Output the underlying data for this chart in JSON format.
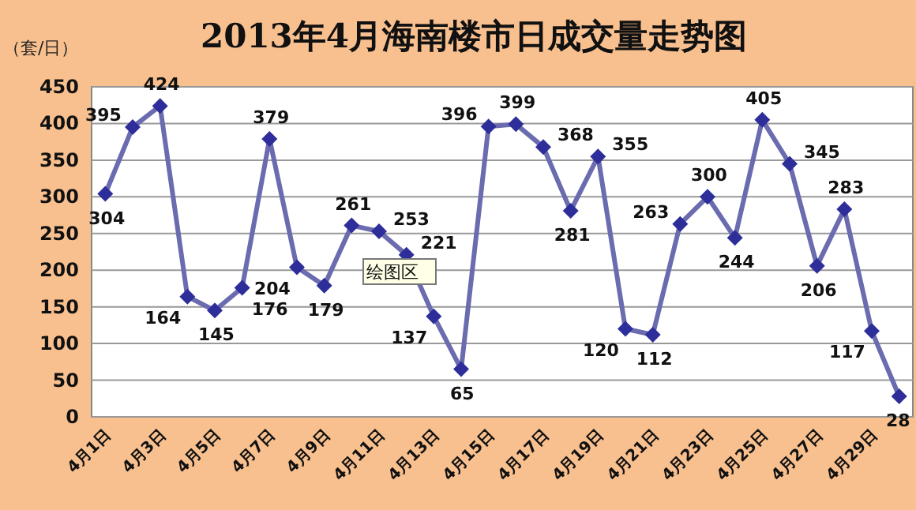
{
  "chart_data": {
    "type": "line",
    "title": "2013年4月海南楼市日成交量走势图",
    "ylabel": "（套/日）",
    "categories": [
      "4月1日",
      null,
      "4月3日",
      null,
      "4月5日",
      null,
      "4月7日",
      null,
      "4月9日",
      null,
      "4月11日",
      null,
      "4月13日",
      null,
      "4月15日",
      null,
      "4月17日",
      null,
      "4月19日",
      null,
      "4月21日",
      null,
      "4月23日",
      null,
      "4月25日",
      null,
      "4月27日",
      null,
      "4月29日",
      null
    ],
    "series": [
      {
        "color": "#6b6bb0",
        "values": [
          304,
          395,
          424,
          164,
          145,
          176,
          379,
          204,
          179,
          261,
          253,
          221,
          137,
          65,
          396,
          399,
          368,
          281,
          355,
          120,
          112,
          263,
          300,
          244,
          405,
          345,
          206,
          283,
          117,
          28
        ]
      }
    ],
    "ylim": [
      0,
      450
    ],
    "yticks": [
      0,
      50,
      100,
      150,
      200,
      250,
      300,
      350,
      400,
      450
    ],
    "grid": "y",
    "marker": "diamond",
    "data_labels": true,
    "annotations": [
      "绘图区"
    ]
  }
}
